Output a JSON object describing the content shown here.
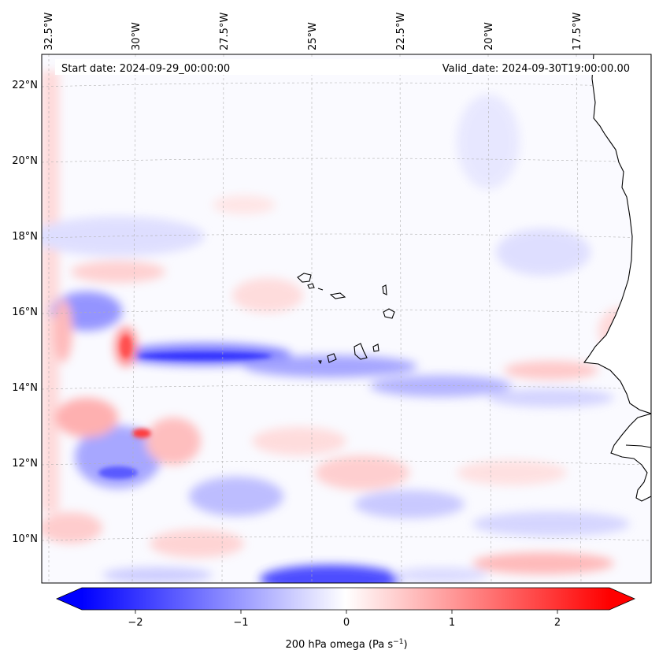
{
  "map": {
    "start_date": "Start date: 2024-09-29_00:00:00",
    "valid_date": "Valid_date: 2024-09-30T19:00:00.00",
    "lon_labels": [
      "32.5°W",
      "30°W",
      "27.5°W",
      "25°W",
      "22.5°W",
      "20°W",
      "17.5°W"
    ],
    "lat_labels": [
      "22°N",
      "20°N",
      "18°N",
      "16°N",
      "14°N",
      "12°N",
      "10°N"
    ],
    "lon_values": [
      -32.5,
      -30,
      -27.5,
      -25,
      -22.5,
      -20,
      -17.5
    ],
    "lat_values": [
      22,
      20,
      18,
      16,
      14,
      12,
      10
    ],
    "lon_range": [
      -33,
      -16.2
    ],
    "lat_range": [
      8.9,
      22.8
    ],
    "gridlines": true,
    "field": "200 hPa omega",
    "colors": {
      "negative": "#0000ff",
      "zero": "#ffffff",
      "positive": "#ff0000",
      "coast": "#000000"
    }
  },
  "colorbar": {
    "label": "200 hPa omega (Pa s",
    "label_sup": "−1",
    "label_end": ")",
    "ticks": [
      "−2",
      "−1",
      "0",
      "1",
      "2"
    ],
    "tick_values": [
      -2,
      -1,
      0,
      1,
      2
    ],
    "range": [
      -2.6,
      2.6
    ],
    "extend": "both"
  }
}
